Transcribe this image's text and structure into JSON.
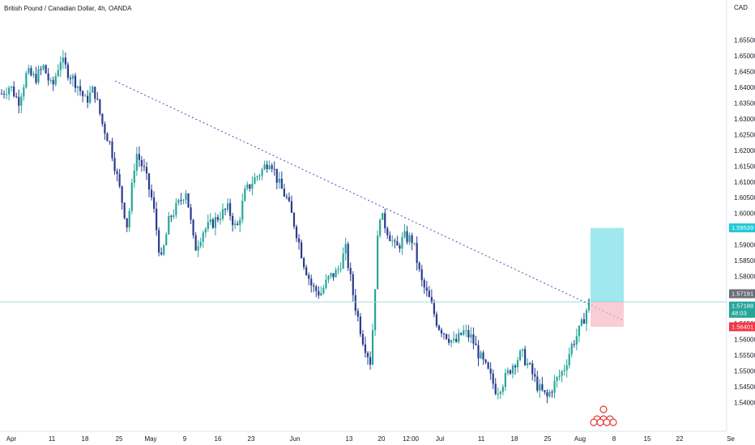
{
  "chart_data": {
    "type": "candlestick",
    "title": "British Pound / Canadian Dollar, 4h, OANDA",
    "currency_label": "CAD",
    "colors": {
      "up": "#26a69a",
      "down": "#2a3c8f",
      "trendline": "#3f51b5",
      "hline": "#9fdcd8",
      "profit": "#5fd9e4",
      "loss": "#f6b8c1",
      "last_bg": "#26a69a",
      "prev_bg": "#6b6f7a",
      "stop_bg": "#f23645",
      "target_bg": "#20c9d6"
    },
    "ylim": [
      1.536,
      1.66
    ],
    "y_ticks": [
      "1.65500",
      "1.65000",
      "1.64500",
      "1.64000",
      "1.63500",
      "1.63000",
      "1.62500",
      "1.62000",
      "1.61500",
      "1.61000",
      "1.60500",
      "1.60000",
      "1.59500",
      "1.59000",
      "1.58500",
      "1.58000",
      "1.57500",
      "1.57000",
      "1.56500",
      "1.56000",
      "1.55500",
      "1.55000",
      "1.54500",
      "1.54000"
    ],
    "x_ticks": [
      "Apr",
      "11",
      "18",
      "25",
      "May",
      "9",
      "16",
      "23",
      "Jun",
      "13",
      "20",
      "12:00",
      "Jul",
      "11",
      "18",
      "25",
      "Aug",
      "8",
      "15",
      "22",
      "Se"
    ],
    "series_closes": [
      1.638,
      1.6405,
      1.6355,
      1.6445,
      1.6428,
      1.6465,
      1.6395,
      1.649,
      1.6445,
      1.641,
      1.6355,
      1.6395,
      1.6285,
      1.6215,
      1.6085,
      1.5955,
      1.6195,
      1.6135,
      1.6035,
      1.5845,
      1.5985,
      1.6025,
      1.6075,
      1.5885,
      1.5945,
      1.5965,
      1.5995,
      1.6015,
      1.5945,
      1.6065,
      1.6105,
      1.6135,
      1.6175,
      1.6095,
      1.6045,
      1.5955,
      1.5845,
      1.5765,
      1.5745,
      1.5795,
      1.5815,
      1.5885,
      1.5725,
      1.5605,
      1.5525,
      1.6005,
      1.5945,
      1.5885,
      1.5925,
      1.5915,
      1.5785,
      1.5725,
      1.5645,
      1.5615,
      1.5585,
      1.5625,
      1.5605,
      1.5545,
      1.5495,
      1.5435,
      1.5475,
      1.5525,
      1.5555,
      1.5505,
      1.5445,
      1.5415,
      1.5465,
      1.5505,
      1.5585,
      1.5635,
      1.5718
    ],
    "price_labels": {
      "target": "1.59539",
      "previous": "1.57191",
      "last": "1.57188",
      "countdown": "48:03",
      "stop": "1.56401"
    },
    "drawings": {
      "trendline": [
        [
          1.642,
          1.566
        ]
      ],
      "horizontal_line": 1.5719,
      "long_position": {
        "entry": 1.5719,
        "target": 1.59539,
        "stop": 1.56401
      }
    },
    "events_marker": "calendar events"
  }
}
